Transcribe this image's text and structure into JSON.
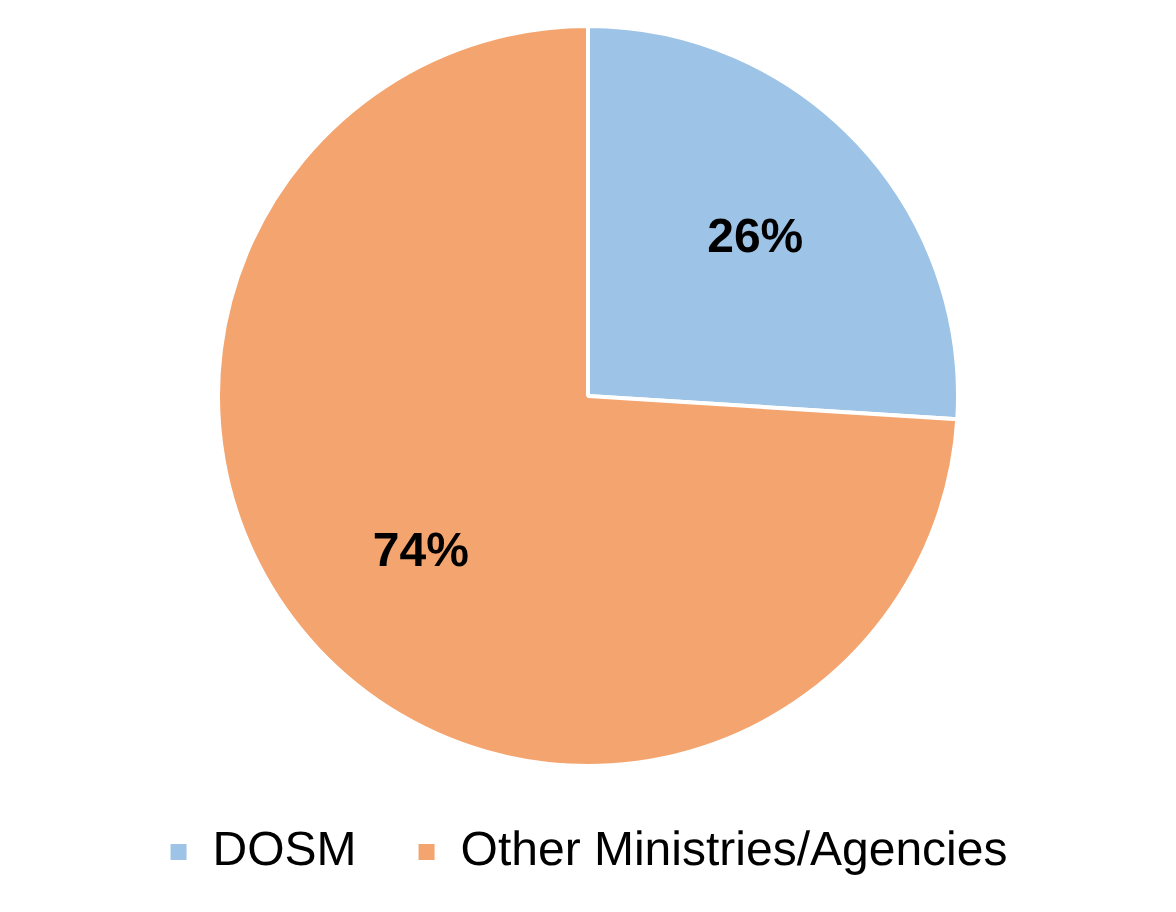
{
  "chart_data": {
    "type": "pie",
    "categories": [
      "DOSM",
      "Other Ministries/Agencies"
    ],
    "values": [
      26,
      74
    ],
    "colors": [
      "#9dc3e6",
      "#f4a46e"
    ],
    "value_labels": [
      "26%",
      "74%"
    ],
    "legend": "bottom"
  }
}
